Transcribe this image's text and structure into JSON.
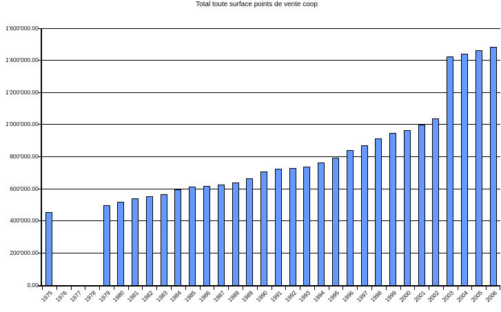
{
  "chart_data": {
    "type": "bar",
    "title": "Total toute surface points de vente coop",
    "categories": [
      "1975",
      "1976",
      "1977",
      "1978",
      "1979",
      "1980",
      "1981",
      "1982",
      "1983",
      "1984",
      "1985",
      "1986",
      "1987",
      "1988",
      "1989",
      "1990",
      "1991",
      "1992",
      "1993",
      "1994",
      "1995",
      "1996",
      "1997",
      "1998",
      "1999",
      "2000",
      "2001",
      "2002",
      "2003",
      "2004",
      "2005",
      "2006"
    ],
    "values": [
      450000,
      0,
      0,
      0,
      495000,
      515000,
      535000,
      550000,
      560000,
      590000,
      610000,
      615000,
      620000,
      635000,
      660000,
      705000,
      720000,
      725000,
      735000,
      760000,
      790000,
      835000,
      865000,
      910000,
      945000,
      960000,
      995000,
      1035000,
      1420000,
      1435000,
      1460000,
      1480000
    ],
    "xlabel": "",
    "ylabel": "",
    "ylim": [
      0,
      1600000
    ],
    "ytick_interval": 200000,
    "ytick_labels": [
      "0.00",
      "200'000.00",
      "400'000.00",
      "600'000.00",
      "800'000.00",
      "1'000'000.00",
      "1'200'000.00",
      "1'400'000.00",
      "1'600'000.00"
    ],
    "grid": "horizontal",
    "legend_position": "none",
    "bar_color": "#6699FF",
    "bar_border_color": "#000000",
    "axis_color": "#000000",
    "background_color": "#FFFFFF"
  }
}
